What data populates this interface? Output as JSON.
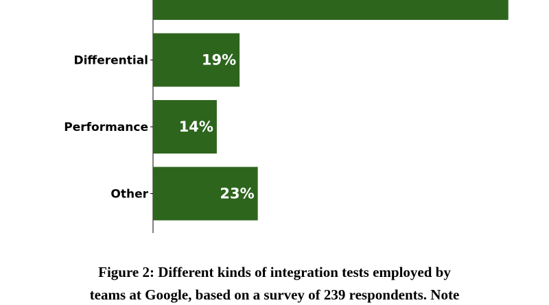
{
  "chart_data": {
    "type": "barh",
    "categories": [
      null,
      "Differential",
      "Performance",
      "Other"
    ],
    "values": [
      78,
      19,
      14,
      23
    ],
    "value_labels": [
      null,
      "19%",
      "14%",
      "23%"
    ],
    "color": "#2d651d",
    "xlim": [
      0,
      80
    ],
    "caption": [
      "Figure 2: Different kinds of integration tests employed by",
      "teams at Google, based on a survey of 239 respondents. Note"
    ]
  }
}
